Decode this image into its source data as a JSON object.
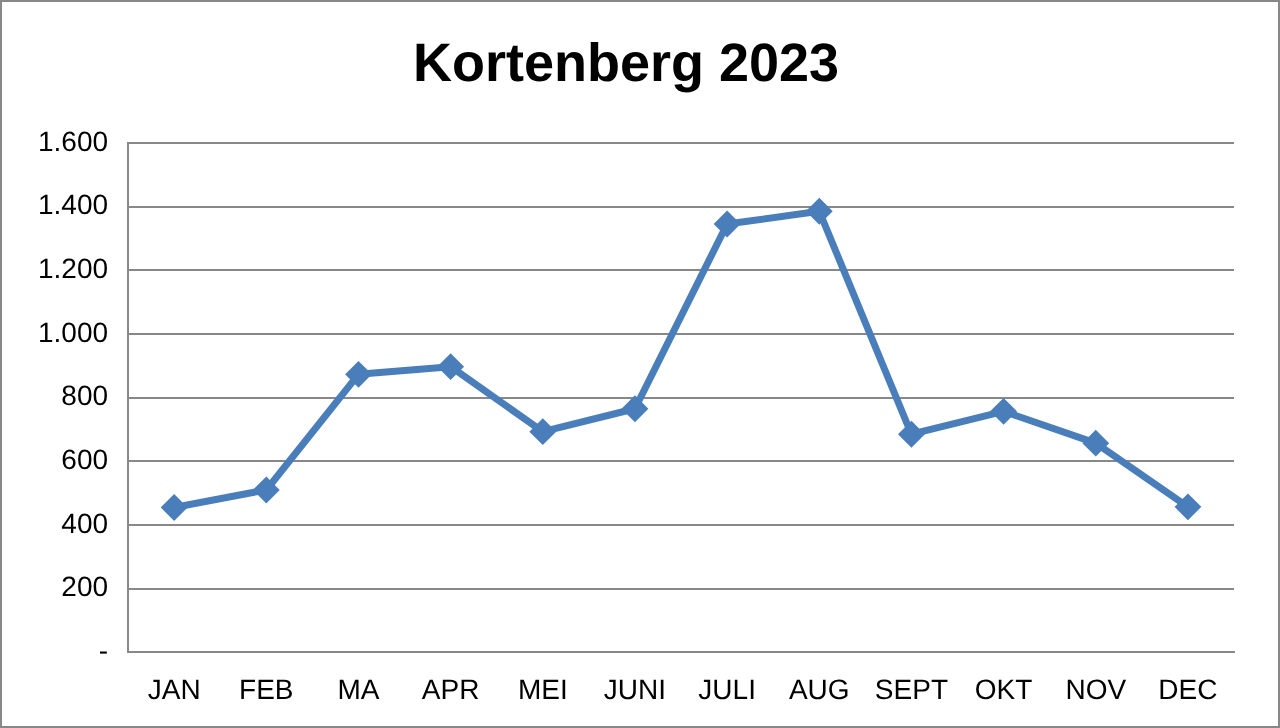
{
  "chart_data": {
    "type": "line",
    "title": "Kortenberg 2023",
    "categories": [
      "JAN",
      "FEB",
      "MA",
      "APR",
      "MEI",
      "JUNI",
      "JULI",
      "AUG",
      "SEPT",
      "OKT",
      "NOV",
      "DEC"
    ],
    "series": [
      {
        "color": "#4a7ebb",
        "values": [
          455,
          510,
          873,
          897,
          693,
          765,
          1345,
          1385,
          685,
          757,
          657,
          457
        ]
      }
    ],
    "ylim": [
      0,
      1600
    ],
    "yticks": [
      {
        "value": 0,
        "label": "-"
      },
      {
        "value": 200,
        "label": "200"
      },
      {
        "value": 400,
        "label": "400"
      },
      {
        "value": 600,
        "label": "600"
      },
      {
        "value": 800,
        "label": "800"
      },
      {
        "value": 1000,
        "label": "1.000"
      },
      {
        "value": 1200,
        "label": "1.200"
      },
      {
        "value": 1400,
        "label": "1.400"
      },
      {
        "value": 1600,
        "label": "1.600"
      }
    ],
    "grid": "y",
    "legend": false,
    "marker": "diamond",
    "line_style": "solid"
  }
}
